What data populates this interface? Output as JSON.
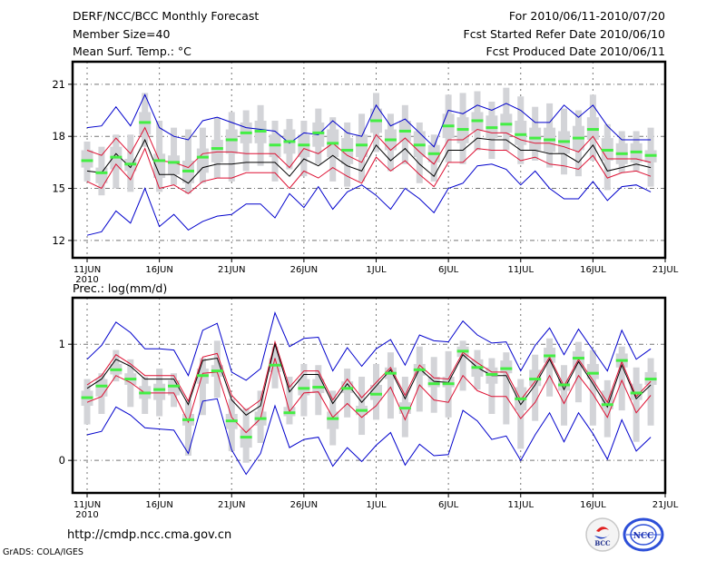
{
  "header": {
    "title": "DERF/NCC/BCC Monthly Forecast",
    "member_size": "Member Size=40",
    "variable_label": "Mean Surf. Temp.: °C",
    "period": "For 2010/06/11-2010/07/20",
    "started_date": "Fcst Started Refer Date 2010/06/10",
    "produced_date": "Fcst Produced Date 2010/06/11"
  },
  "footer": {
    "url": "http://cmdp.ncc.cma.gov.cn",
    "grads": "GrADS: COLA/IGES",
    "logo_left": "BCC",
    "logo_right": "NCC"
  },
  "colors": {
    "envelope": "#0000cc",
    "spread": "#dd1133",
    "mean": "#000000",
    "median": "#44ee44",
    "box": "#d3d4d8",
    "grid": "#777777"
  },
  "chart_data": [
    {
      "type": "line",
      "title": "Mean Surf. Temp.: °C",
      "xlabel": "",
      "ylabel": "",
      "ylim": [
        11,
        22.3
      ],
      "yticks": [
        12,
        15,
        18,
        21
      ],
      "ytick_labels": [
        "12",
        "15",
        "18",
        "21"
      ],
      "xticks": [
        "11JUN",
        "16JUN",
        "21JUN",
        "26JUN",
        "1JUL",
        "6JUL",
        "11JUL",
        "16JUL",
        "21JUL"
      ],
      "xtick_sublabel": "2010",
      "grid": true,
      "x_start": "2010-06-11",
      "n_days": 40,
      "series": [
        {
          "name": "median",
          "kind": "bar-marker",
          "values": [
            16.6,
            15.9,
            16.8,
            16.4,
            18.8,
            16.6,
            16.5,
            16.0,
            16.8,
            17.3,
            17.8,
            18.2,
            18.3,
            17.5,
            17.7,
            17.5,
            18.2,
            17.6,
            17.2,
            17.5,
            18.9,
            17.8,
            18.3,
            17.5,
            17.0,
            18.6,
            18.4,
            18.9,
            18.5,
            18.7,
            18.1,
            17.9,
            17.8,
            17.7,
            17.9,
            18.4,
            17.2,
            17.0,
            17.1,
            16.9
          ]
        },
        {
          "name": "ensemble-mean",
          "values": [
            16.0,
            15.9,
            17.0,
            16.2,
            17.8,
            15.8,
            15.8,
            15.3,
            16.2,
            16.4,
            16.4,
            16.5,
            16.5,
            16.5,
            15.7,
            16.7,
            16.3,
            16.9,
            16.3,
            16.0,
            17.5,
            16.6,
            17.3,
            16.4,
            15.7,
            17.2,
            17.2,
            17.9,
            17.8,
            17.8,
            17.2,
            17.2,
            17.0,
            17.0,
            16.5,
            17.5,
            16.0,
            16.2,
            16.4,
            16.2
          ]
        },
        {
          "name": "mean-plus-std",
          "values": [
            17.2,
            16.9,
            17.9,
            17.0,
            18.5,
            16.6,
            16.5,
            16.2,
            17.0,
            17.1,
            17.1,
            17.0,
            17.0,
            17.0,
            16.2,
            17.3,
            17.0,
            17.6,
            16.9,
            16.5,
            18.1,
            17.2,
            17.9,
            17.1,
            16.4,
            17.8,
            17.8,
            18.4,
            18.2,
            18.2,
            17.8,
            17.6,
            17.6,
            17.4,
            17.1,
            18.0,
            16.7,
            16.7,
            16.7,
            16.5
          ]
        },
        {
          "name": "mean-minus-std",
          "values": [
            15.4,
            15.0,
            16.4,
            15.5,
            17.3,
            15.0,
            15.2,
            14.7,
            15.4,
            15.6,
            15.6,
            15.9,
            15.9,
            15.9,
            15.0,
            16.0,
            15.6,
            16.2,
            15.7,
            15.3,
            16.8,
            16.0,
            16.6,
            15.8,
            15.1,
            16.5,
            16.5,
            17.3,
            17.2,
            17.2,
            16.6,
            16.8,
            16.4,
            16.3,
            16.1,
            16.9,
            15.6,
            15.9,
            16.0,
            15.7
          ]
        },
        {
          "name": "ensemble-max",
          "values": [
            18.5,
            18.6,
            19.7,
            18.6,
            20.4,
            18.5,
            18.0,
            17.8,
            18.9,
            19.1,
            18.8,
            18.5,
            18.4,
            18.3,
            17.6,
            18.2,
            18.1,
            18.9,
            18.2,
            18.0,
            19.8,
            18.6,
            19.0,
            18.2,
            17.4,
            19.5,
            19.3,
            19.8,
            19.5,
            19.9,
            19.5,
            18.8,
            18.8,
            19.8,
            19.1,
            19.8,
            18.6,
            17.8,
            17.8,
            17.8
          ]
        },
        {
          "name": "ensemble-min",
          "values": [
            12.3,
            12.5,
            13.7,
            13.0,
            15.0,
            12.8,
            13.5,
            12.6,
            13.1,
            13.4,
            13.5,
            14.1,
            14.1,
            13.3,
            14.7,
            13.9,
            15.1,
            13.8,
            14.8,
            15.2,
            14.6,
            13.8,
            15.0,
            14.4,
            13.6,
            15.0,
            15.3,
            16.3,
            16.4,
            16.1,
            15.2,
            16.0,
            15.0,
            14.4,
            14.4,
            15.4,
            14.3,
            15.1,
            15.2,
            14.8
          ]
        },
        {
          "name": "box-q1",
          "values": [
            16.2,
            15.3,
            16.1,
            16.0,
            18.1,
            15.6,
            15.8,
            15.3,
            15.9,
            16.5,
            17.0,
            17.6,
            17.6,
            16.8,
            17.0,
            16.8,
            17.4,
            16.8,
            16.4,
            16.8,
            18.2,
            17.2,
            17.7,
            16.8,
            16.5,
            17.9,
            17.6,
            18.3,
            17.9,
            18.2,
            17.5,
            17.2,
            17.1,
            17.0,
            17.2,
            17.8,
            16.6,
            16.4,
            16.5,
            16.5
          ]
        },
        {
          "name": "box-q3",
          "values": [
            17.2,
            16.2,
            17.4,
            16.7,
            19.4,
            17.0,
            16.9,
            16.6,
            17.3,
            17.8,
            18.4,
            18.8,
            18.9,
            18.1,
            18.4,
            18.1,
            18.8,
            18.4,
            17.9,
            18.1,
            19.6,
            18.4,
            18.9,
            18.3,
            17.5,
            19.3,
            19.1,
            19.4,
            19.2,
            19.3,
            18.9,
            18.5,
            18.5,
            18.3,
            18.6,
            19.1,
            17.9,
            17.6,
            17.6,
            17.2
          ]
        },
        {
          "name": "whisker-min",
          "values": [
            15.4,
            14.6,
            15.0,
            14.8,
            17.4,
            14.8,
            15.2,
            14.7,
            15.3,
            15.6,
            15.4,
            16.0,
            16.3,
            15.4,
            16.1,
            15.7,
            16.4,
            15.4,
            15.1,
            15.4,
            17.1,
            16.0,
            16.4,
            15.3,
            15.4,
            16.5,
            16.4,
            17.2,
            16.7,
            17.2,
            16.4,
            16.6,
            16.2,
            15.8,
            15.7,
            16.6,
            14.9,
            15.9,
            16.0,
            15.1
          ]
        },
        {
          "name": "whisker-max",
          "values": [
            17.7,
            17.4,
            18.1,
            18.1,
            20.5,
            18.9,
            18.5,
            18.4,
            18.5,
            19.1,
            19.4,
            19.5,
            19.8,
            18.9,
            19.0,
            18.9,
            19.6,
            19.1,
            18.8,
            19.3,
            20.5,
            19.3,
            19.8,
            18.8,
            18.1,
            20.4,
            20.5,
            20.6,
            20.0,
            20.8,
            20.3,
            19.7,
            19.9,
            19.6,
            19.5,
            20.4,
            18.7,
            18.3,
            18.3,
            18.5
          ]
        }
      ]
    },
    {
      "type": "line",
      "title": "Prec.: log(mm/d)",
      "xlabel": "",
      "ylabel": "",
      "ylim": [
        -0.28,
        1.4
      ],
      "yticks": [
        0,
        1
      ],
      "ytick_labels": [
        "0",
        "1"
      ],
      "xticks": [
        "11JUN",
        "16JUN",
        "21JUN",
        "26JUN",
        "1JUL",
        "6JUL",
        "11JUL",
        "16JUL",
        "21JUL"
      ],
      "xtick_sublabel": "2010",
      "grid": true,
      "x_start": "2010-06-11",
      "n_days": 40,
      "series": [
        {
          "name": "median",
          "kind": "bar-marker",
          "values": [
            0.54,
            0.64,
            0.78,
            0.7,
            0.58,
            0.61,
            0.64,
            0.35,
            0.73,
            0.77,
            0.34,
            0.2,
            0.36,
            0.82,
            0.41,
            0.62,
            0.63,
            0.36,
            0.62,
            0.43,
            0.57,
            0.75,
            0.45,
            0.78,
            0.66,
            0.66,
            0.94,
            0.8,
            0.74,
            0.79,
            0.53,
            0.7,
            0.9,
            0.65,
            0.88,
            0.75,
            0.48,
            0.86,
            0.58,
            0.7
          ]
        },
        {
          "name": "ensemble-mean",
          "values": [
            0.62,
            0.7,
            0.87,
            0.81,
            0.7,
            0.7,
            0.7,
            0.48,
            0.86,
            0.88,
            0.52,
            0.39,
            0.47,
            1.0,
            0.59,
            0.74,
            0.74,
            0.49,
            0.66,
            0.5,
            0.64,
            0.78,
            0.53,
            0.79,
            0.68,
            0.67,
            0.91,
            0.8,
            0.73,
            0.73,
            0.48,
            0.65,
            0.87,
            0.61,
            0.85,
            0.66,
            0.46,
            0.82,
            0.53,
            0.65
          ]
        },
        {
          "name": "mean-plus-std",
          "values": [
            0.65,
            0.73,
            0.91,
            0.83,
            0.73,
            0.73,
            0.73,
            0.51,
            0.89,
            0.92,
            0.56,
            0.43,
            0.52,
            1.02,
            0.63,
            0.77,
            0.77,
            0.52,
            0.7,
            0.54,
            0.67,
            0.8,
            0.56,
            0.82,
            0.71,
            0.7,
            0.93,
            0.84,
            0.76,
            0.76,
            0.52,
            0.68,
            0.89,
            0.64,
            0.87,
            0.69,
            0.5,
            0.85,
            0.55,
            0.68
          ]
        },
        {
          "name": "mean-minus-std",
          "values": [
            0.5,
            0.55,
            0.73,
            0.67,
            0.58,
            0.58,
            0.58,
            0.33,
            0.75,
            0.76,
            0.37,
            0.24,
            0.36,
            0.88,
            0.42,
            0.58,
            0.59,
            0.37,
            0.49,
            0.37,
            0.47,
            0.63,
            0.35,
            0.65,
            0.52,
            0.5,
            0.73,
            0.6,
            0.55,
            0.55,
            0.36,
            0.5,
            0.73,
            0.49,
            0.73,
            0.57,
            0.37,
            0.69,
            0.41,
            0.56
          ]
        },
        {
          "name": "ensemble-max",
          "values": [
            0.87,
            0.99,
            1.19,
            1.1,
            0.96,
            0.96,
            0.95,
            0.73,
            1.12,
            1.18,
            0.76,
            0.69,
            0.79,
            1.27,
            0.98,
            1.05,
            1.06,
            0.77,
            0.97,
            0.81,
            0.96,
            1.04,
            0.82,
            1.08,
            1.03,
            1.02,
            1.2,
            1.08,
            1.01,
            1.02,
            0.77,
            0.99,
            1.14,
            0.91,
            1.13,
            0.95,
            0.77,
            1.12,
            0.87,
            0.96
          ]
        },
        {
          "name": "ensemble-min",
          "values": [
            0.22,
            0.25,
            0.46,
            0.39,
            0.28,
            0.27,
            0.26,
            0.06,
            0.51,
            0.53,
            0.09,
            -0.12,
            0.06,
            0.47,
            0.11,
            0.18,
            0.2,
            -0.05,
            0.11,
            -0.01,
            0.13,
            0.24,
            -0.04,
            0.14,
            0.04,
            0.05,
            0.43,
            0.34,
            0.18,
            0.21,
            0.0,
            0.22,
            0.41,
            0.16,
            0.41,
            0.23,
            0.01,
            0.35,
            0.08,
            0.2
          ]
        },
        {
          "name": "box-q1",
          "values": [
            0.47,
            0.55,
            0.74,
            0.65,
            0.53,
            0.52,
            0.56,
            0.3,
            0.66,
            0.72,
            0.27,
            0.11,
            0.3,
            0.76,
            0.38,
            0.56,
            0.58,
            0.27,
            0.58,
            0.39,
            0.52,
            0.7,
            0.4,
            0.73,
            0.63,
            0.63,
            0.89,
            0.72,
            0.66,
            0.75,
            0.43,
            0.64,
            0.84,
            0.6,
            0.8,
            0.7,
            0.44,
            0.8,
            0.52,
            0.65
          ]
        },
        {
          "name": "box-q3",
          "values": [
            0.6,
            0.7,
            0.83,
            0.75,
            0.64,
            0.66,
            0.69,
            0.4,
            0.79,
            0.82,
            0.4,
            0.27,
            0.42,
            0.88,
            0.46,
            0.7,
            0.7,
            0.42,
            0.68,
            0.47,
            0.65,
            0.8,
            0.5,
            0.83,
            0.72,
            0.72,
            0.98,
            0.87,
            0.8,
            0.86,
            0.63,
            0.78,
            0.97,
            0.7,
            0.94,
            0.83,
            0.6,
            0.92,
            0.66,
            0.76
          ]
        },
        {
          "name": "whisker-min",
          "values": [
            0.31,
            0.4,
            0.68,
            0.46,
            0.4,
            0.38,
            0.46,
            0.04,
            0.39,
            0.54,
            0.08,
            -0.02,
            0.15,
            0.62,
            0.31,
            0.38,
            0.39,
            0.13,
            0.37,
            0.22,
            0.35,
            0.36,
            0.2,
            0.42,
            0.41,
            0.37,
            0.6,
            0.61,
            0.4,
            0.31,
            0.1,
            0.34,
            0.55,
            0.3,
            0.5,
            0.3,
            0.2,
            0.43,
            0.16,
            0.3
          ]
        },
        {
          "name": "whisker-max",
          "values": [
            0.7,
            0.75,
            0.95,
            0.87,
            0.72,
            0.79,
            0.75,
            0.52,
            0.88,
            1.03,
            0.53,
            0.45,
            0.6,
            0.98,
            0.72,
            0.83,
            0.82,
            0.6,
            0.79,
            0.72,
            0.83,
            0.93,
            0.72,
            0.98,
            0.89,
            0.94,
            1.03,
            0.95,
            0.88,
            0.93,
            0.7,
            0.91,
            1.05,
            0.82,
            1.02,
            0.95,
            0.69,
            0.98,
            0.8,
            0.88
          ]
        }
      ]
    }
  ]
}
